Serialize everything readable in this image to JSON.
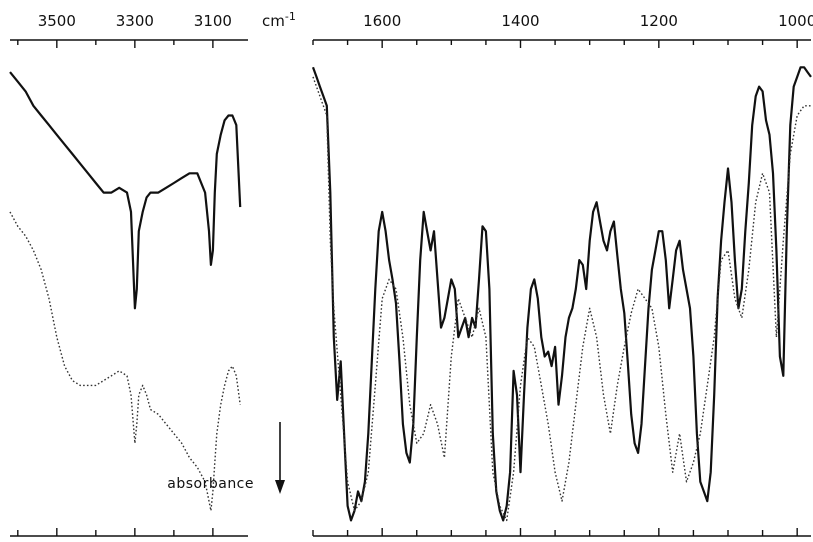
{
  "unit_label": "cm",
  "unit_exponent": "-1",
  "annotation": "absorbance",
  "chart_data": [
    {
      "type": "line",
      "panel": "left",
      "xlabel": "",
      "ylabel": "",
      "x_reversed": true,
      "xlim": [
        3620,
        3010
      ],
      "ylim": [
        0,
        1
      ],
      "major_ticks": [
        3500,
        3300,
        3100
      ],
      "tick_labels": [
        "3500",
        "3300",
        "3100"
      ],
      "minor_ticks": [
        3600,
        3400,
        3200
      ],
      "y_axis_shown": false,
      "grid": false,
      "series": [
        {
          "style": "solid",
          "x": [
            3620,
            3600,
            3580,
            3560,
            3540,
            3520,
            3500,
            3480,
            3460,
            3440,
            3420,
            3400,
            3380,
            3360,
            3340,
            3320,
            3310,
            3300,
            3295,
            3290,
            3280,
            3270,
            3260,
            3240,
            3220,
            3200,
            3180,
            3160,
            3140,
            3120,
            3110,
            3105,
            3100,
            3095,
            3090,
            3080,
            3070,
            3060,
            3050,
            3040,
            3030
          ],
          "y": [
            0.95,
            0.93,
            0.91,
            0.88,
            0.86,
            0.84,
            0.82,
            0.8,
            0.78,
            0.76,
            0.74,
            0.72,
            0.7,
            0.7,
            0.71,
            0.7,
            0.66,
            0.46,
            0.5,
            0.62,
            0.66,
            0.69,
            0.7,
            0.7,
            0.71,
            0.72,
            0.73,
            0.74,
            0.74,
            0.7,
            0.62,
            0.55,
            0.58,
            0.7,
            0.78,
            0.82,
            0.85,
            0.86,
            0.86,
            0.84,
            0.67
          ]
        },
        {
          "style": "dotted",
          "x": [
            3620,
            3600,
            3580,
            3560,
            3540,
            3520,
            3500,
            3480,
            3460,
            3440,
            3420,
            3400,
            3380,
            3360,
            3340,
            3320,
            3310,
            3300,
            3295,
            3290,
            3280,
            3270,
            3260,
            3240,
            3220,
            3200,
            3180,
            3160,
            3140,
            3120,
            3110,
            3105,
            3100,
            3095,
            3090,
            3080,
            3070,
            3060,
            3050,
            3040,
            3030
          ],
          "y": [
            0.66,
            0.63,
            0.61,
            0.58,
            0.54,
            0.48,
            0.4,
            0.34,
            0.31,
            0.3,
            0.3,
            0.3,
            0.31,
            0.32,
            0.33,
            0.32,
            0.28,
            0.18,
            0.22,
            0.28,
            0.3,
            0.28,
            0.25,
            0.24,
            0.22,
            0.2,
            0.18,
            0.15,
            0.13,
            0.1,
            0.06,
            0.04,
            0.08,
            0.14,
            0.2,
            0.26,
            0.3,
            0.33,
            0.34,
            0.32,
            0.26
          ]
        }
      ]
    },
    {
      "type": "line",
      "panel": "right",
      "xlabel": "",
      "ylabel": "",
      "x_reversed": true,
      "xlim": [
        1700,
        980
      ],
      "ylim": [
        0,
        1
      ],
      "major_ticks": [
        1600,
        1400,
        1200,
        1000
      ],
      "tick_labels": [
        "1600",
        "1400",
        "1200",
        "1000"
      ],
      "minor_ticks": [
        1700,
        1650,
        1550,
        1500,
        1450,
        1350,
        1300,
        1250,
        1150,
        1100,
        1050
      ],
      "y_axis_shown": false,
      "grid": false,
      "series": [
        {
          "style": "solid",
          "x": [
            1700,
            1695,
            1690,
            1685,
            1680,
            1675,
            1670,
            1665,
            1660,
            1655,
            1650,
            1645,
            1640,
            1635,
            1630,
            1625,
            1620,
            1615,
            1610,
            1605,
            1600,
            1595,
            1590,
            1585,
            1580,
            1575,
            1570,
            1565,
            1560,
            1555,
            1550,
            1545,
            1540,
            1535,
            1530,
            1525,
            1520,
            1515,
            1510,
            1505,
            1500,
            1495,
            1490,
            1485,
            1480,
            1475,
            1470,
            1465,
            1460,
            1455,
            1450,
            1445,
            1440,
            1435,
            1430,
            1425,
            1420,
            1415,
            1410,
            1405,
            1400,
            1395,
            1390,
            1385,
            1380,
            1375,
            1370,
            1365,
            1360,
            1355,
            1350,
            1345,
            1340,
            1335,
            1330,
            1325,
            1320,
            1315,
            1310,
            1305,
            1300,
            1295,
            1290,
            1285,
            1280,
            1275,
            1270,
            1265,
            1260,
            1255,
            1250,
            1245,
            1240,
            1235,
            1230,
            1225,
            1220,
            1215,
            1210,
            1205,
            1200,
            1195,
            1190,
            1185,
            1180,
            1175,
            1170,
            1165,
            1160,
            1155,
            1150,
            1145,
            1140,
            1135,
            1130,
            1125,
            1120,
            1115,
            1110,
            1105,
            1100,
            1095,
            1090,
            1085,
            1080,
            1075,
            1070,
            1065,
            1060,
            1055,
            1050,
            1045,
            1040,
            1035,
            1030,
            1025,
            1020,
            1015,
            1010,
            1005,
            1000,
            995,
            990,
            985,
            980
          ],
          "y": [
            0.96,
            0.94,
            0.92,
            0.9,
            0.88,
            0.7,
            0.4,
            0.27,
            0.35,
            0.2,
            0.05,
            0.02,
            0.04,
            0.08,
            0.06,
            0.1,
            0.2,
            0.35,
            0.5,
            0.62,
            0.66,
            0.62,
            0.56,
            0.52,
            0.47,
            0.35,
            0.22,
            0.16,
            0.14,
            0.22,
            0.4,
            0.56,
            0.66,
            0.62,
            0.58,
            0.62,
            0.52,
            0.42,
            0.44,
            0.48,
            0.52,
            0.5,
            0.4,
            0.42,
            0.44,
            0.4,
            0.44,
            0.42,
            0.52,
            0.63,
            0.62,
            0.5,
            0.2,
            0.08,
            0.04,
            0.02,
            0.05,
            0.12,
            0.33,
            0.28,
            0.12,
            0.28,
            0.42,
            0.5,
            0.52,
            0.48,
            0.4,
            0.36,
            0.37,
            0.34,
            0.38,
            0.26,
            0.32,
            0.4,
            0.44,
            0.46,
            0.5,
            0.56,
            0.55,
            0.5,
            0.6,
            0.66,
            0.68,
            0.64,
            0.6,
            0.58,
            0.62,
            0.64,
            0.57,
            0.5,
            0.45,
            0.35,
            0.24,
            0.18,
            0.16,
            0.22,
            0.34,
            0.46,
            0.54,
            0.58,
            0.62,
            0.62,
            0.56,
            0.46,
            0.52,
            0.58,
            0.6,
            0.54,
            0.5,
            0.46,
            0.36,
            0.2,
            0.1,
            0.08,
            0.06,
            0.12,
            0.28,
            0.48,
            0.6,
            0.68,
            0.75,
            0.68,
            0.56,
            0.46,
            0.5,
            0.62,
            0.72,
            0.84,
            0.9,
            0.92,
            0.91,
            0.85,
            0.82,
            0.74,
            0.58,
            0.36,
            0.32,
            0.62,
            0.84,
            0.92,
            0.94,
            0.96,
            0.96,
            0.95,
            0.94
          ]
        },
        {
          "style": "dotted",
          "x": [
            1700,
            1690,
            1680,
            1675,
            1670,
            1660,
            1650,
            1640,
            1630,
            1620,
            1610,
            1600,
            1590,
            1580,
            1570,
            1560,
            1550,
            1540,
            1530,
            1520,
            1510,
            1500,
            1490,
            1480,
            1470,
            1460,
            1450,
            1440,
            1430,
            1420,
            1410,
            1400,
            1390,
            1380,
            1370,
            1360,
            1350,
            1340,
            1330,
            1320,
            1310,
            1300,
            1290,
            1280,
            1270,
            1260,
            1250,
            1240,
            1230,
            1220,
            1210,
            1200,
            1190,
            1180,
            1170,
            1160,
            1150,
            1140,
            1130,
            1120,
            1110,
            1100,
            1090,
            1080,
            1070,
            1060,
            1050,
            1040,
            1030,
            1020,
            1010,
            1000,
            990,
            980
          ],
          "y": [
            0.94,
            0.9,
            0.86,
            0.6,
            0.46,
            0.28,
            0.1,
            0.04,
            0.06,
            0.12,
            0.3,
            0.48,
            0.52,
            0.5,
            0.4,
            0.26,
            0.18,
            0.2,
            0.26,
            0.22,
            0.15,
            0.36,
            0.48,
            0.44,
            0.4,
            0.46,
            0.4,
            0.12,
            0.05,
            0.02,
            0.12,
            0.3,
            0.4,
            0.38,
            0.3,
            0.22,
            0.12,
            0.06,
            0.14,
            0.26,
            0.38,
            0.46,
            0.4,
            0.28,
            0.2,
            0.3,
            0.38,
            0.45,
            0.5,
            0.48,
            0.46,
            0.38,
            0.24,
            0.12,
            0.2,
            0.1,
            0.14,
            0.2,
            0.3,
            0.4,
            0.56,
            0.58,
            0.48,
            0.44,
            0.54,
            0.68,
            0.74,
            0.7,
            0.4,
            0.6,
            0.78,
            0.86,
            0.88,
            0.88
          ]
        }
      ]
    }
  ]
}
